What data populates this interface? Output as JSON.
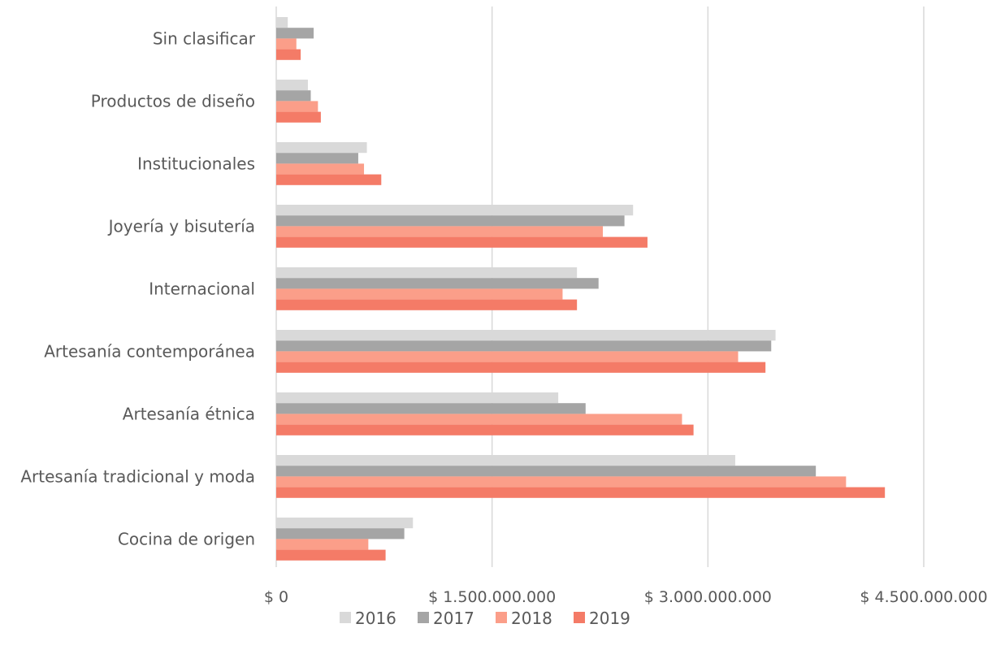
{
  "chart_data": {
    "type": "bar",
    "orientation": "horizontal",
    "categories": [
      "Sin clasificar",
      "Productos de diseño",
      "Institucionales",
      "Joyería y bisutería",
      "Internacional",
      "Artesanía contemporánea",
      "Artesanía étnica",
      "Artesanía tradicional y moda",
      "Cocina de origen"
    ],
    "series": [
      {
        "name": "2016",
        "color": "#d9d9d9",
        "values": [
          80000000,
          220000000,
          630000000,
          2480000000,
          2090000000,
          3470000000,
          1960000000,
          3190000000,
          950000000
        ]
      },
      {
        "name": "2017",
        "color": "#a5a5a5",
        "values": [
          260000000,
          240000000,
          570000000,
          2420000000,
          2240000000,
          3440000000,
          2150000000,
          3750000000,
          890000000
        ]
      },
      {
        "name": "2018",
        "color": "#fb9e89",
        "values": [
          140000000,
          290000000,
          610000000,
          2270000000,
          1990000000,
          3210000000,
          2820000000,
          3960000000,
          640000000
        ]
      },
      {
        "name": "2019",
        "color": "#f47b67",
        "values": [
          170000000,
          310000000,
          730000000,
          2580000000,
          2090000000,
          3400000000,
          2900000000,
          4230000000,
          760000000
        ]
      }
    ],
    "xlim": [
      0,
      4500000000
    ],
    "xticks": [
      0,
      1500000000,
      3000000000,
      4500000000
    ],
    "xtick_labels": [
      "$ 0",
      "$ 1.500.000.000",
      "$ 3.000.000.000",
      "$ 4.500.000.000"
    ],
    "title": "",
    "xlabel": "",
    "ylabel": "",
    "grid": true,
    "legend_position": "bottom"
  }
}
